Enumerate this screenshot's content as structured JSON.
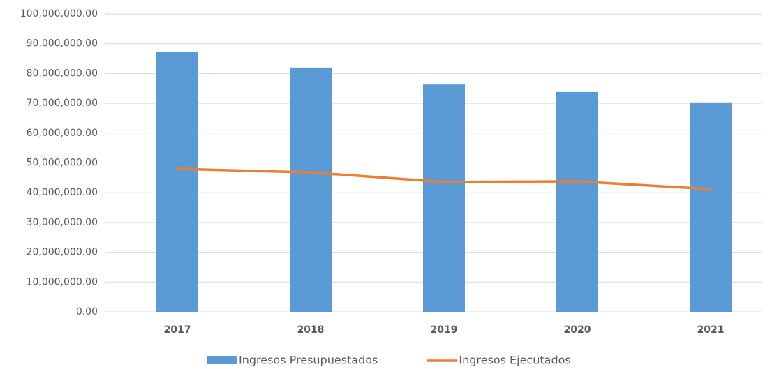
{
  "chart_data": {
    "type": "bar",
    "categories": [
      "2017",
      "2018",
      "2019",
      "2020",
      "2021"
    ],
    "series": [
      {
        "name": "Ingresos Presupuestados",
        "type": "bar",
        "color": "#5b9bd5",
        "values": [
          87300000,
          82000000,
          76300000,
          73800000,
          70300000
        ]
      },
      {
        "name": "Ingresos Ejecutados",
        "type": "line",
        "color": "#ed7d31",
        "values": [
          48000000,
          46800000,
          43600000,
          43800000,
          41200000
        ]
      }
    ],
    "ylim": [
      0,
      100000000
    ],
    "yticks": [
      {
        "value": 0,
        "label": "0.00"
      },
      {
        "value": 10000000,
        "label": "10,000,000.00"
      },
      {
        "value": 20000000,
        "label": "20,000,000.00"
      },
      {
        "value": 30000000,
        "label": "30,000,000.00"
      },
      {
        "value": 40000000,
        "label": "40,000,000.00"
      },
      {
        "value": 50000000,
        "label": "50,000,000.00"
      },
      {
        "value": 60000000,
        "label": "60,000,000.00"
      },
      {
        "value": 70000000,
        "label": "70,000,000.00"
      },
      {
        "value": 80000000,
        "label": "80,000,000.00"
      },
      {
        "value": 90000000,
        "label": "90,000,000.00"
      },
      {
        "value": 100000000,
        "label": "100,000,000.00"
      }
    ],
    "grid": true,
    "legend": "bottom"
  }
}
